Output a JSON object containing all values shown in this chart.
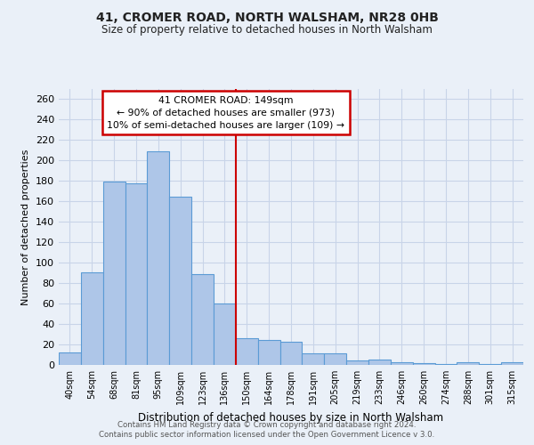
{
  "title": "41, CROMER ROAD, NORTH WALSHAM, NR28 0HB",
  "subtitle": "Size of property relative to detached houses in North Walsham",
  "xlabel": "Distribution of detached houses by size in North Walsham",
  "ylabel": "Number of detached properties",
  "bar_labels": [
    "40sqm",
    "54sqm",
    "68sqm",
    "81sqm",
    "95sqm",
    "109sqm",
    "123sqm",
    "136sqm",
    "150sqm",
    "164sqm",
    "178sqm",
    "191sqm",
    "205sqm",
    "219sqm",
    "233sqm",
    "246sqm",
    "260sqm",
    "274sqm",
    "288sqm",
    "301sqm",
    "315sqm"
  ],
  "bar_values": [
    12,
    91,
    179,
    178,
    209,
    165,
    89,
    60,
    26,
    24,
    23,
    11,
    11,
    4,
    5,
    3,
    2,
    1,
    3,
    1,
    3
  ],
  "bar_color": "#aec6e8",
  "bar_edge_color": "#5b9bd5",
  "vline_color": "#cc0000",
  "annotation_text": "41 CROMER ROAD: 149sqm\n← 90% of detached houses are smaller (973)\n10% of semi-detached houses are larger (109) →",
  "annotation_box_color": "#ffffff",
  "annotation_box_edge_color": "#cc0000",
  "grid_color": "#c8d4e8",
  "bg_color": "#eaf0f8",
  "footer1": "Contains HM Land Registry data © Crown copyright and database right 2024.",
  "footer2": "Contains public sector information licensed under the Open Government Licence v 3.0.",
  "ylim": [
    0,
    270
  ],
  "yticks": [
    0,
    20,
    40,
    60,
    80,
    100,
    120,
    140,
    160,
    180,
    200,
    220,
    240,
    260
  ]
}
